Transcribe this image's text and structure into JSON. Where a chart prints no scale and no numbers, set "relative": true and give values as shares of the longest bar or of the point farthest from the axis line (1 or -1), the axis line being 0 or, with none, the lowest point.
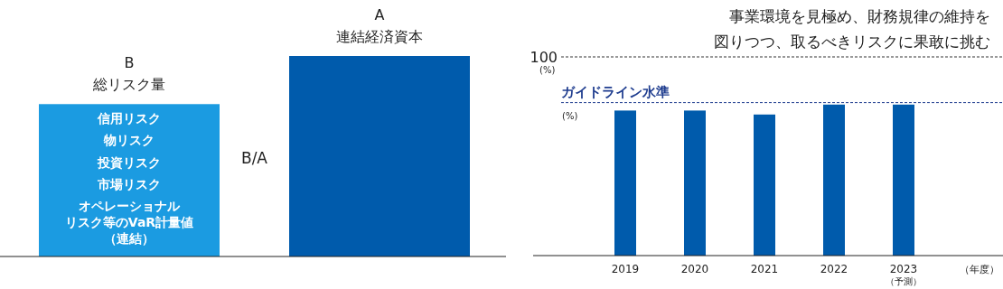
{
  "chart_data": [
    {
      "type": "bar",
      "relative": true,
      "categories": [
        null,
        null
      ],
      "values": [
        0.76,
        1
      ],
      "colors": [
        "#1b9be1",
        "#005bac"
      ],
      "annotations": [
        "信用リスク",
        "物リスク",
        "投資リスク",
        "市場リスク",
        "オペレーショナルリスク等のVaR計量値（連結）",
        "B/A",
        "B",
        "総リスク量",
        "A",
        "連結経済資本"
      ]
    },
    {
      "type": "bar",
      "title": "事業環境を見極め、財務規律の維持を図りつつ、取るべきリスクに果敢に挑む",
      "xlabel": "（年度）",
      "categories": [
        "2019",
        "2020",
        "2021",
        "2022",
        "2023"
      ],
      "values": [
        73,
        73,
        71,
        76,
        76
      ],
      "color": "#005bac",
      "ylim": [
        0,
        100
      ],
      "yticks": [
        100
      ],
      "ref_lines": [
        {
          "axis": "y",
          "value": 100,
          "line_style": "dashed",
          "color": "#333333"
        },
        {
          "axis": "y",
          "value": 77,
          "label": "ガイドライン水準",
          "line_style": "dashed",
          "color": "#1f3d8f"
        }
      ],
      "annotations": [
        "(%)",
        "(%)",
        "（予測）"
      ]
    }
  ]
}
